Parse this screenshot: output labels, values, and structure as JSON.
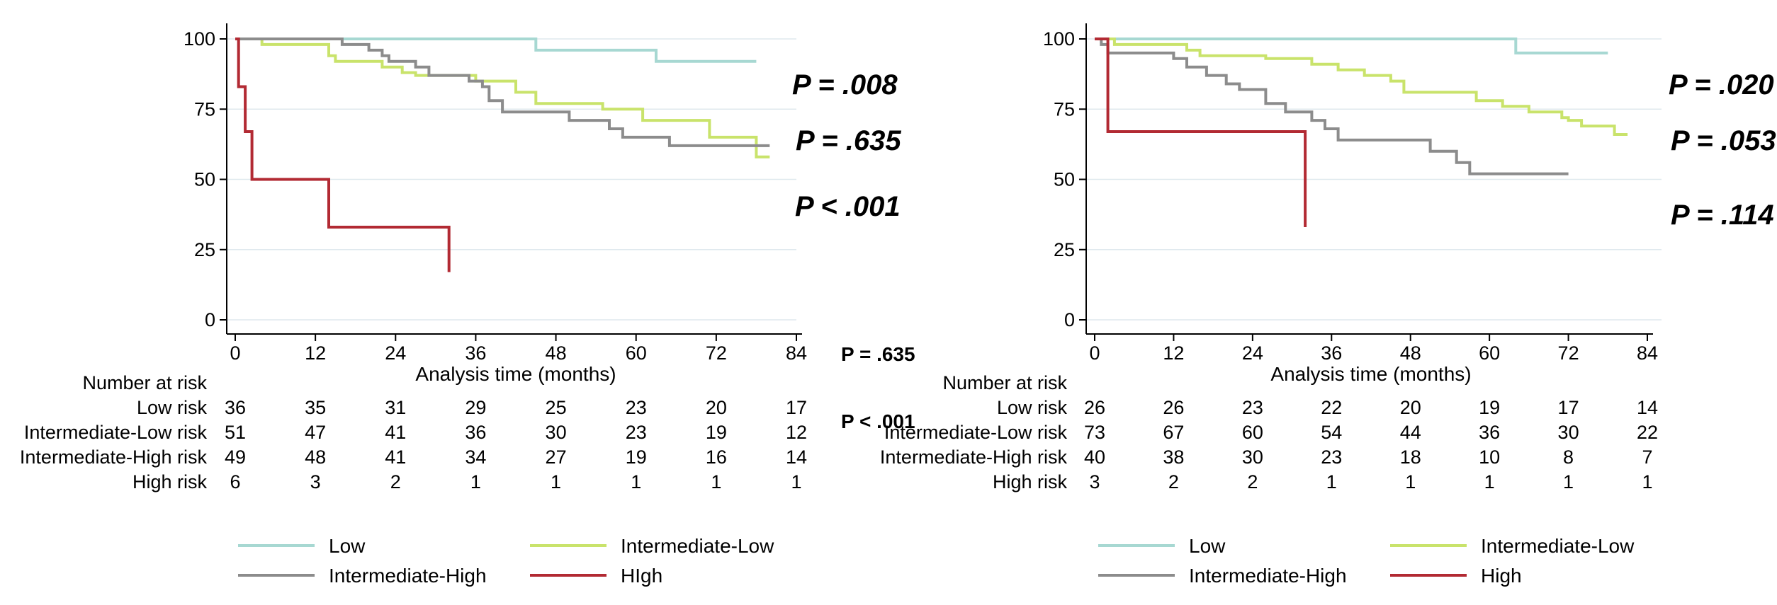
{
  "chart_data": [
    {
      "type": "line",
      "subtype": "kaplan-meier",
      "xlabel": "Analysis time (months)",
      "ylabel": "",
      "xlim": [
        0,
        84
      ],
      "ylim": [
        0,
        100
      ],
      "x_ticks": [
        "0",
        "12",
        "24",
        "36",
        "48",
        "60",
        "72",
        "84"
      ],
      "y_ticks": [
        "0",
        "25",
        "50",
        "75",
        "100"
      ],
      "grid": "horizontal",
      "series": [
        {
          "name": "Low",
          "color": "#a7d8d2",
          "points": [
            [
              0,
              100
            ],
            [
              45,
              100
            ],
            [
              45,
              96
            ],
            [
              63,
              96
            ],
            [
              63,
              92
            ],
            [
              78,
              92
            ]
          ]
        },
        {
          "name": "Intermediate-Low",
          "color": "#c9e36b",
          "points": [
            [
              0,
              100
            ],
            [
              4,
              100
            ],
            [
              4,
              98
            ],
            [
              14,
              98
            ],
            [
              14,
              94
            ],
            [
              15,
              94
            ],
            [
              15,
              92
            ],
            [
              22,
              92
            ],
            [
              22,
              90
            ],
            [
              25,
              90
            ],
            [
              25,
              88
            ],
            [
              27,
              88
            ],
            [
              27,
              87
            ],
            [
              36,
              87
            ],
            [
              36,
              85
            ],
            [
              42,
              85
            ],
            [
              42,
              81
            ],
            [
              45,
              81
            ],
            [
              45,
              77
            ],
            [
              55,
              77
            ],
            [
              55,
              75
            ],
            [
              61,
              75
            ],
            [
              61,
              71
            ],
            [
              71,
              71
            ],
            [
              71,
              65
            ],
            [
              78,
              65
            ],
            [
              78,
              58
            ],
            [
              80,
              58
            ]
          ]
        },
        {
          "name": "Intermediate-High",
          "color": "#8c8c8c",
          "points": [
            [
              0,
              100
            ],
            [
              16,
              100
            ],
            [
              16,
              98
            ],
            [
              20,
              98
            ],
            [
              20,
              96
            ],
            [
              22,
              96
            ],
            [
              22,
              94
            ],
            [
              23,
              94
            ],
            [
              23,
              92
            ],
            [
              27,
              92
            ],
            [
              27,
              90
            ],
            [
              29,
              90
            ],
            [
              29,
              87
            ],
            [
              35,
              87
            ],
            [
              35,
              85
            ],
            [
              37,
              85
            ],
            [
              37,
              83
            ],
            [
              38,
              83
            ],
            [
              38,
              78
            ],
            [
              40,
              78
            ],
            [
              40,
              74
            ],
            [
              50,
              74
            ],
            [
              50,
              71
            ],
            [
              56,
              71
            ],
            [
              56,
              68
            ],
            [
              58,
              68
            ],
            [
              58,
              65
            ],
            [
              65,
              65
            ],
            [
              65,
              62
            ],
            [
              80,
              62
            ]
          ]
        },
        {
          "name": "High",
          "color": "#b22a33",
          "points": [
            [
              0,
              100
            ],
            [
              0.5,
              100
            ],
            [
              0.5,
              83
            ],
            [
              1.5,
              83
            ],
            [
              1.5,
              67
            ],
            [
              2.5,
              67
            ],
            [
              2.5,
              50
            ],
            [
              14,
              50
            ],
            [
              14,
              33
            ],
            [
              32,
              33
            ],
            [
              32,
              17
            ]
          ]
        }
      ],
      "legend": [
        "Low",
        "Intermediate-Low",
        "Intermediate-High",
        "HIgh"
      ],
      "p_values_bold": [
        "P = .008",
        "P = .635",
        "P < .001"
      ],
      "p_values_small": [
        "P = .635",
        "P < .001"
      ],
      "number_at_risk": {
        "title": "Number at risk",
        "rows": [
          {
            "label": "Low risk",
            "values": [
              "36",
              "35",
              "31",
              "29",
              "25",
              "23",
              "20",
              "17"
            ]
          },
          {
            "label": "Intermediate-Low risk",
            "values": [
              "51",
              "47",
              "41",
              "36",
              "30",
              "23",
              "19",
              "12"
            ]
          },
          {
            "label": "Intermediate-High risk",
            "values": [
              "49",
              "48",
              "41",
              "34",
              "27",
              "19",
              "16",
              "14"
            ]
          },
          {
            "label": "High risk",
            "values": [
              "6",
              "3",
              "2",
              "1",
              "1",
              "1",
              "1",
              "1"
            ]
          }
        ]
      }
    },
    {
      "type": "line",
      "subtype": "kaplan-meier",
      "xlabel": "Analysis time (months)",
      "ylabel": "",
      "xlim": [
        0,
        84
      ],
      "ylim": [
        0,
        100
      ],
      "x_ticks": [
        "0",
        "12",
        "24",
        "36",
        "48",
        "60",
        "72",
        "84"
      ],
      "y_ticks": [
        "0",
        "25",
        "50",
        "75",
        "100"
      ],
      "grid": "horizontal",
      "series": [
        {
          "name": "Low",
          "color": "#a7d8d2",
          "points": [
            [
              0,
              100
            ],
            [
              64,
              100
            ],
            [
              64,
              95
            ],
            [
              78,
              95
            ]
          ]
        },
        {
          "name": "Intermediate-Low",
          "color": "#c9e36b",
          "points": [
            [
              0,
              100
            ],
            [
              3,
              100
            ],
            [
              3,
              98
            ],
            [
              14,
              98
            ],
            [
              14,
              96
            ],
            [
              16,
              96
            ],
            [
              16,
              94
            ],
            [
              26,
              94
            ],
            [
              26,
              93
            ],
            [
              33,
              93
            ],
            [
              33,
              91
            ],
            [
              37,
              91
            ],
            [
              37,
              89
            ],
            [
              41,
              89
            ],
            [
              41,
              87
            ],
            [
              45,
              87
            ],
            [
              45,
              85
            ],
            [
              47,
              85
            ],
            [
              47,
              81
            ],
            [
              58,
              81
            ],
            [
              58,
              78
            ],
            [
              62,
              78
            ],
            [
              62,
              76
            ],
            [
              66,
              76
            ],
            [
              66,
              74
            ],
            [
              71,
              74
            ],
            [
              71,
              72
            ],
            [
              72,
              72
            ],
            [
              72,
              71
            ],
            [
              74,
              71
            ],
            [
              74,
              69
            ],
            [
              79,
              69
            ],
            [
              79,
              66
            ],
            [
              81,
              66
            ]
          ]
        },
        {
          "name": "Intermediate-High",
          "color": "#8c8c8c",
          "points": [
            [
              0,
              100
            ],
            [
              1,
              100
            ],
            [
              1,
              98
            ],
            [
              2,
              98
            ],
            [
              2,
              95
            ],
            [
              12,
              95
            ],
            [
              12,
              93
            ],
            [
              14,
              93
            ],
            [
              14,
              90
            ],
            [
              17,
              90
            ],
            [
              17,
              87
            ],
            [
              20,
              87
            ],
            [
              20,
              84
            ],
            [
              22,
              84
            ],
            [
              22,
              82
            ],
            [
              26,
              82
            ],
            [
              26,
              77
            ],
            [
              29,
              77
            ],
            [
              29,
              74
            ],
            [
              33,
              74
            ],
            [
              33,
              71
            ],
            [
              35,
              71
            ],
            [
              35,
              68
            ],
            [
              37,
              68
            ],
            [
              37,
              64
            ],
            [
              51,
              64
            ],
            [
              51,
              60
            ],
            [
              55,
              60
            ],
            [
              55,
              56
            ],
            [
              57,
              56
            ],
            [
              57,
              52
            ],
            [
              72,
              52
            ]
          ]
        },
        {
          "name": "High",
          "color": "#b22a33",
          "points": [
            [
              0,
              100
            ],
            [
              2,
              100
            ],
            [
              2,
              67
            ],
            [
              32,
              67
            ],
            [
              32,
              33
            ]
          ]
        }
      ],
      "legend": [
        "Low",
        "Intermediate-Low",
        "Intermediate-High",
        "High"
      ],
      "p_values_bold": [
        "P = .020",
        "P = .053",
        "P = .114"
      ],
      "number_at_risk": {
        "title": "Number at risk",
        "rows": [
          {
            "label": "Low risk",
            "values": [
              "26",
              "26",
              "23",
              "22",
              "20",
              "19",
              "17",
              "14"
            ]
          },
          {
            "label": "Intermediate-Low risk",
            "values": [
              "73",
              "67",
              "60",
              "54",
              "44",
              "36",
              "30",
              "22"
            ]
          },
          {
            "label": "Intermediate-High risk",
            "values": [
              "40",
              "38",
              "30",
              "23",
              "18",
              "10",
              "8",
              "7"
            ]
          },
          {
            "label": "High risk",
            "values": [
              "3",
              "2",
              "2",
              "1",
              "1",
              "1",
              "1",
              "1"
            ]
          }
        ]
      }
    }
  ]
}
